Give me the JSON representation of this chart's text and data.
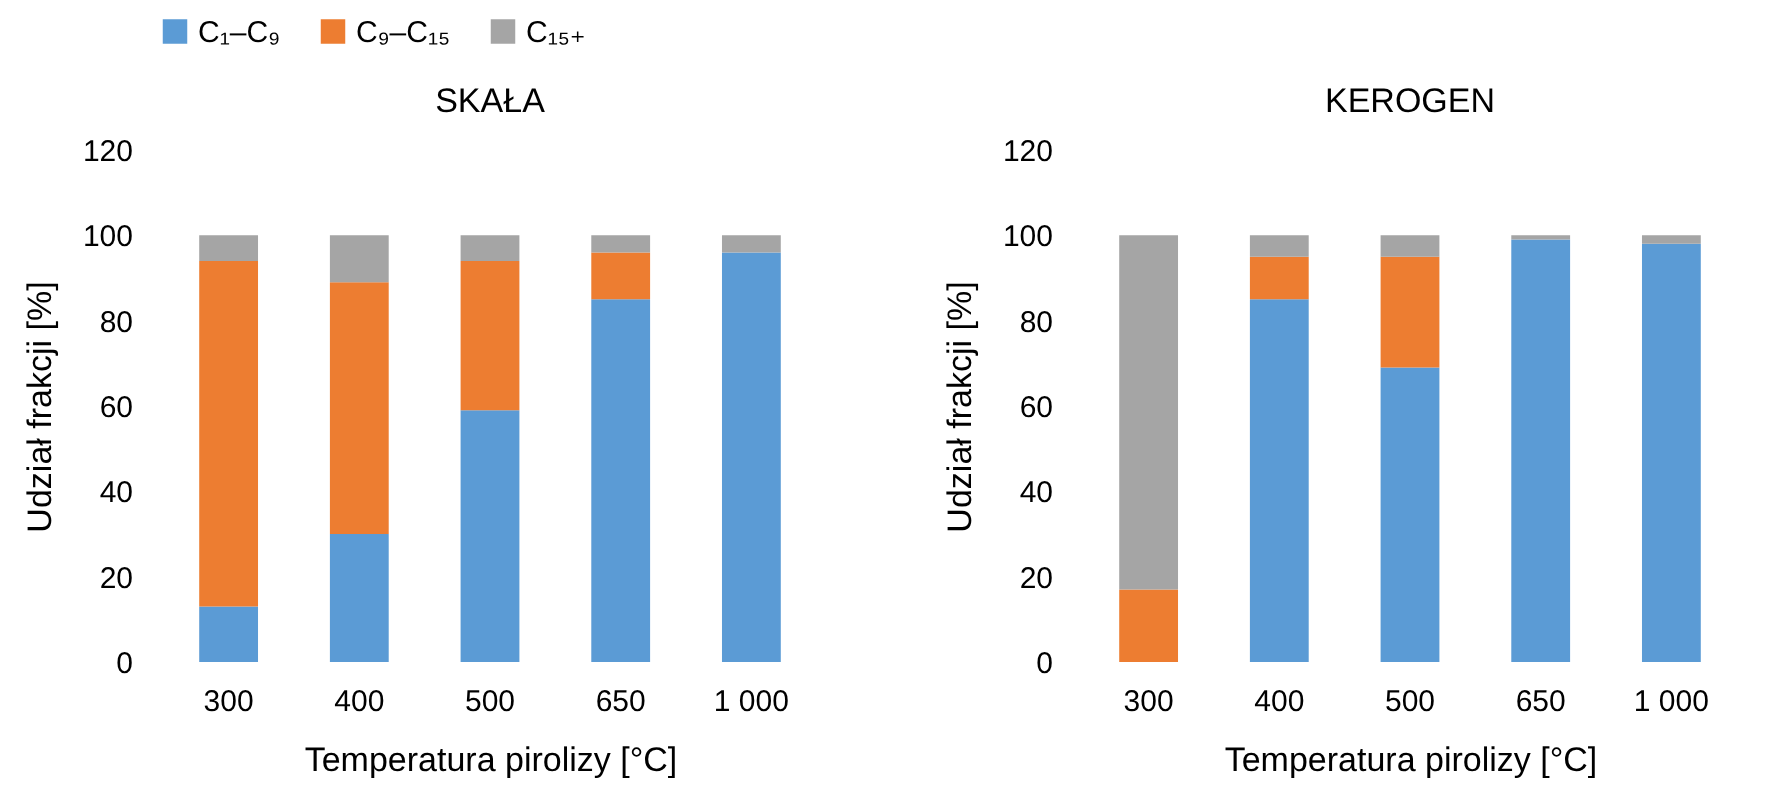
{
  "chart_data": [
    {
      "type": "bar",
      "title": "SKAŁA",
      "xlabel": "Temperatura pirolizy [°C]",
      "ylabel": "Udział frakcji [%]",
      "categories": [
        "300",
        "400",
        "500",
        "650",
        "1 000"
      ],
      "stacked": true,
      "ylim": [
        0,
        120
      ],
      "yticks": [
        0,
        20,
        40,
        60,
        80,
        100,
        120
      ],
      "legend": "top",
      "series": [
        {
          "name": "C₁–C₉",
          "color": "#5b9bd5",
          "values": [
            13,
            30,
            59,
            85,
            96
          ]
        },
        {
          "name": "C₉–C₁₅",
          "color": "#ed7d31",
          "values": [
            81,
            59,
            35,
            11,
            0
          ]
        },
        {
          "name": "C₁₅₊",
          "color": "#a5a5a5",
          "values": [
            6,
            11,
            6,
            4,
            4
          ]
        }
      ]
    },
    {
      "type": "bar",
      "title": "KEROGEN",
      "xlabel": "Temperatura pirolizy [°C]",
      "ylabel": "Udział frakcji [%]",
      "categories": [
        "300",
        "400",
        "500",
        "650",
        "1 000"
      ],
      "stacked": true,
      "ylim": [
        0,
        120
      ],
      "yticks": [
        0,
        20,
        40,
        60,
        80,
        100,
        120
      ],
      "legend": "top",
      "series": [
        {
          "name": "C₁–C₉",
          "color": "#5b9bd5",
          "values": [
            0,
            85,
            69,
            99,
            98
          ]
        },
        {
          "name": "C₉–C₁₅",
          "color": "#ed7d31",
          "values": [
            17,
            10,
            26,
            0,
            0
          ]
        },
        {
          "name": "C₁₅₊",
          "color": "#a5a5a5",
          "values": [
            83,
            5,
            5,
            1,
            2
          ]
        }
      ]
    }
  ]
}
